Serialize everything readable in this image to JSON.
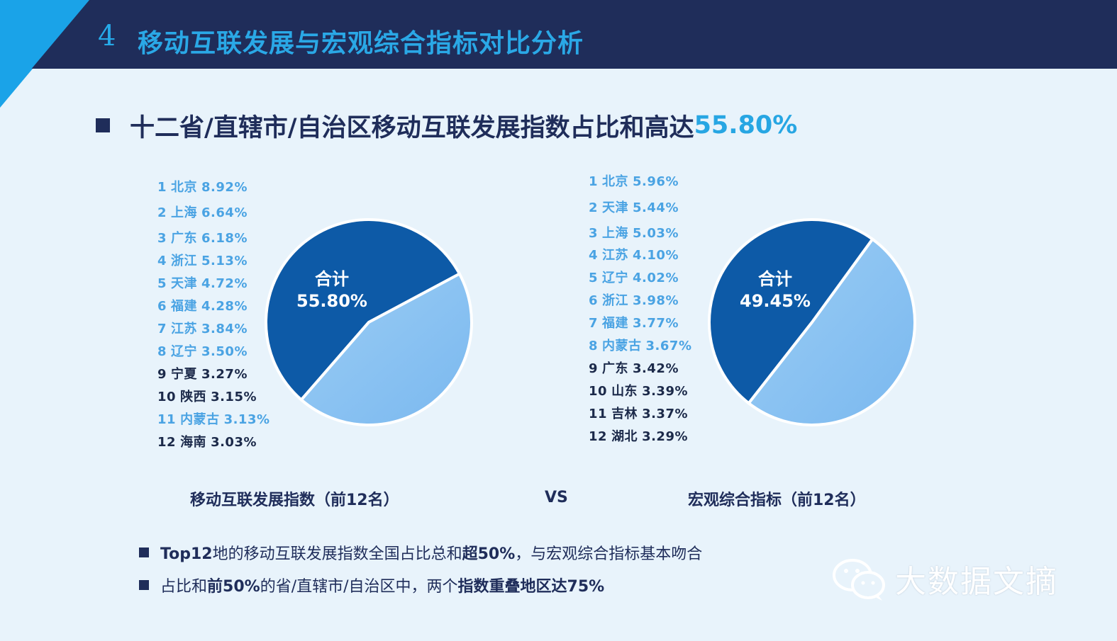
{
  "header": {
    "slide_number": "4",
    "title": "移动互联发展与宏观综合指标对比分析"
  },
  "headline": {
    "text": "十二省/直辖市/自治区移动互联发展指数占比和高达",
    "value": "55.80%"
  },
  "colors": {
    "navy": "#1f2d5a",
    "accent": "#27a6e3",
    "pie_dark": "#0d5aa7",
    "pie_light": "#7ab8ef",
    "label_light": "#4aa3e3",
    "label_dark": "#1c2a4a"
  },
  "captions": {
    "left": "移动互联发展指数（前12名）",
    "vs": "VS",
    "right": "宏观综合指标（前12名）"
  },
  "bullets": [
    {
      "parts": [
        {
          "t": "Top12",
          "b": true
        },
        {
          "t": "地的移动互联发展指数全国占比总和",
          "b": false
        },
        {
          "t": "超50%",
          "b": true
        },
        {
          "t": "，与宏观综合指标基本吻合",
          "b": false
        }
      ]
    },
    {
      "parts": [
        {
          "t": "占比和",
          "b": false
        },
        {
          "t": "前50%",
          "b": true
        },
        {
          "t": "的省/直辖市/自治区中，两个",
          "b": false
        },
        {
          "t": "指数重叠地区达75%",
          "b": true
        }
      ]
    }
  ],
  "watermark": {
    "text": "大数据文摘",
    "icon": "wechat-icon"
  },
  "chart_data": [
    {
      "type": "pie",
      "title": "移动互联发展指数（前12名）",
      "slices": [
        {
          "label": "合计",
          "value": 55.8
        },
        {
          "label": "",
          "value": 44.2
        }
      ],
      "center_label": {
        "title": "合计",
        "value": "55.80%"
      },
      "ranking": [
        {
          "rank": "1",
          "name": "北京",
          "value": "8.92%",
          "tone": "light"
        },
        {
          "rank": "2",
          "name": "上海",
          "value": "6.64%",
          "tone": "light"
        },
        {
          "rank": "3",
          "name": "广东",
          "value": "6.18%",
          "tone": "light"
        },
        {
          "rank": "4",
          "name": "浙江",
          "value": "5.13%",
          "tone": "light"
        },
        {
          "rank": "5",
          "name": "天津",
          "value": "4.72%",
          "tone": "light"
        },
        {
          "rank": "6",
          "name": "福建",
          "value": "4.28%",
          "tone": "light"
        },
        {
          "rank": "7",
          "name": "江苏",
          "value": "3.84%",
          "tone": "light"
        },
        {
          "rank": "8",
          "name": "辽宁",
          "value": "3.50%",
          "tone": "light"
        },
        {
          "rank": "9",
          "name": "宁夏",
          "value": "3.27%",
          "tone": "dark"
        },
        {
          "rank": "10",
          "name": "陕西",
          "value": "3.15%",
          "tone": "dark"
        },
        {
          "rank": "11",
          "name": "内蒙古",
          "value": "3.13%",
          "tone": "light"
        },
        {
          "rank": "12",
          "name": "海南",
          "value": "3.03%",
          "tone": "dark"
        }
      ]
    },
    {
      "type": "pie",
      "title": "宏观综合指标（前12名）",
      "slices": [
        {
          "label": "合计",
          "value": 49.45
        },
        {
          "label": "",
          "value": 50.55
        }
      ],
      "center_label": {
        "title": "合计",
        "value": "49.45%"
      },
      "ranking": [
        {
          "rank": "1",
          "name": "北京",
          "value": "5.96%",
          "tone": "light"
        },
        {
          "rank": "2",
          "name": "天津",
          "value": "5.44%",
          "tone": "light"
        },
        {
          "rank": "3",
          "name": "上海",
          "value": "5.03%",
          "tone": "light"
        },
        {
          "rank": "4",
          "name": "江苏",
          "value": "4.10%",
          "tone": "light"
        },
        {
          "rank": "5",
          "name": "辽宁",
          "value": "4.02%",
          "tone": "light"
        },
        {
          "rank": "6",
          "name": "浙江",
          "value": "3.98%",
          "tone": "light"
        },
        {
          "rank": "7",
          "name": "福建",
          "value": "3.77%",
          "tone": "light"
        },
        {
          "rank": "8",
          "name": "内蒙古",
          "value": "3.67%",
          "tone": "light"
        },
        {
          "rank": "9",
          "name": "广东",
          "value": "3.42%",
          "tone": "dark"
        },
        {
          "rank": "10",
          "name": "山东",
          "value": "3.39%",
          "tone": "dark"
        },
        {
          "rank": "11",
          "name": "吉林",
          "value": "3.37%",
          "tone": "dark"
        },
        {
          "rank": "12",
          "name": "湖北",
          "value": "3.29%",
          "tone": "dark"
        }
      ]
    }
  ]
}
